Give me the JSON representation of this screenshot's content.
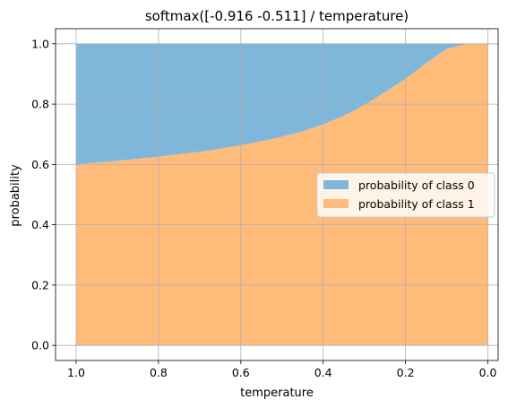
{
  "chart_data": {
    "type": "area",
    "title": "softmax([-0.916 -0.511] / temperature)",
    "xlabel": "temperature",
    "ylabel": "probability",
    "logits": [
      -0.916,
      -0.511
    ],
    "x_inverted": true,
    "xlim": [
      1.05,
      -0.025
    ],
    "ylim": [
      -0.05,
      1.05
    ],
    "x_ticks": [
      "1.0",
      "0.8",
      "0.6",
      "0.4",
      "0.2",
      "0.0"
    ],
    "y_ticks": [
      "0.0",
      "0.2",
      "0.4",
      "0.6",
      "0.8",
      "1.0"
    ],
    "grid": true,
    "legend_position": "center-right",
    "x": [
      1.0,
      0.95,
      0.9,
      0.85,
      0.8,
      0.75,
      0.7,
      0.65,
      0.6,
      0.55,
      0.5,
      0.45,
      0.4,
      0.35,
      0.3,
      0.25,
      0.2,
      0.15,
      0.1,
      0.05,
      0.0
    ],
    "series": [
      {
        "name": "probability of class 0",
        "color": "#7fb7da",
        "values": [
          0.4,
          0.394,
          0.388,
          0.381,
          0.374,
          0.366,
          0.358,
          0.348,
          0.336,
          0.323,
          0.308,
          0.29,
          0.267,
          0.239,
          0.203,
          0.16,
          0.116,
          0.064,
          0.017,
          0.0003,
          0.0
        ]
      },
      {
        "name": "probability of class 1",
        "color": "#ffbb7a",
        "values": [
          0.6,
          0.606,
          0.612,
          0.619,
          0.626,
          0.634,
          0.642,
          0.652,
          0.664,
          0.677,
          0.692,
          0.71,
          0.733,
          0.761,
          0.797,
          0.84,
          0.884,
          0.936,
          0.983,
          0.9997,
          1.0
        ]
      }
    ]
  }
}
